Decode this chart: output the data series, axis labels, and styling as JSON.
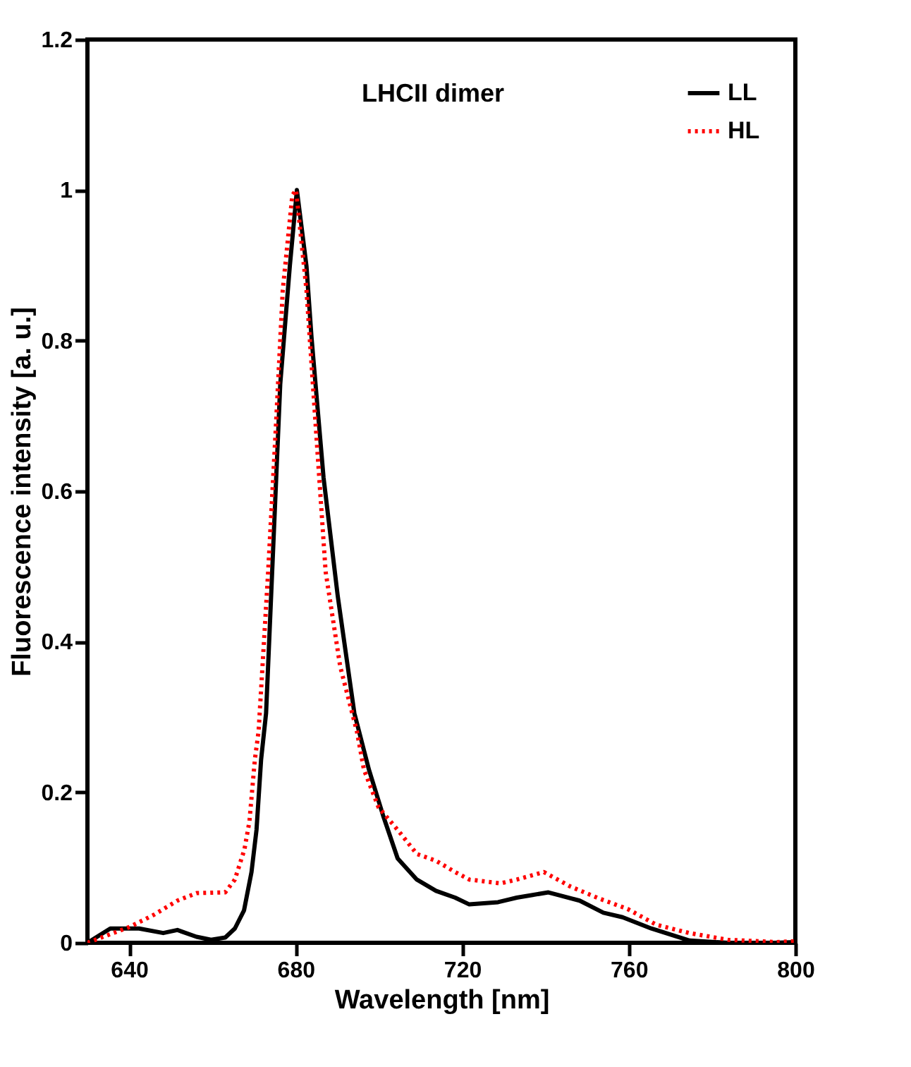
{
  "chart_data": {
    "type": "line",
    "title": "LHCII dimer",
    "xlabel": "Wavelength [nm]",
    "ylabel": "Fluorescence intensity [a. u.]",
    "xlim": [
      630,
      800
    ],
    "xticks": [
      640,
      680,
      720,
      760,
      800
    ],
    "ylim": [
      0,
      1.2
    ],
    "yticks": [
      0,
      0.2,
      0.4,
      0.6,
      0.8,
      1,
      1.2
    ],
    "grid": false,
    "legend": "top right",
    "marker": "none",
    "series": [
      {
        "name": "LL",
        "color": "#000000",
        "line_style": "solid",
        "x": [
          630,
          635.5,
          642.4,
          648.2,
          651.6,
          656.2,
          659.7,
          663.1,
          665.4,
          667.6,
          669.4,
          670.6,
          671.7,
          672.9,
          674.6,
          676.3,
          678.6,
          680.3,
          682.6,
          683.8,
          686.7,
          690.1,
          694.1,
          697.6,
          701,
          704.5,
          709.1,
          713.7,
          718.3,
          721.7,
          728.6,
          733.1,
          740.7,
          748.2,
          753.9,
          758.5,
          765.4,
          774.6,
          783.8,
          795,
          800
        ],
        "values": [
          0,
          0.019,
          0.019,
          0.013,
          0.017,
          0.008,
          0.004,
          0.007,
          0.019,
          0.043,
          0.094,
          0.15,
          0.243,
          0.305,
          0.524,
          0.742,
          0.899,
          1.0,
          0.899,
          0.805,
          0.618,
          0.461,
          0.305,
          0.23,
          0.169,
          0.112,
          0.084,
          0.069,
          0.06,
          0.051,
          0.054,
          0.06,
          0.067,
          0.056,
          0.04,
          0.034,
          0.019,
          0.003,
          0,
          0,
          0.001
        ]
      },
      {
        "name": "HL",
        "color": "#ff0000",
        "line_style": "dotted",
        "x": [
          630,
          640.1,
          645.9,
          651.6,
          656.2,
          663.1,
          665.4,
          667.7,
          668.9,
          670.2,
          671.1,
          673.4,
          675.2,
          676.9,
          679.2,
          680.1,
          682.6,
          684.9,
          687.2,
          690.7,
          694.7,
          696.4,
          699.9,
          704.5,
          709.1,
          713.7,
          718.3,
          721.7,
          729.2,
          733.1,
          739.6,
          745.9,
          752.8,
          759.7,
          766.6,
          774.5,
          783.8,
          795.3,
          800
        ],
        "values": [
          0,
          0.021,
          0.037,
          0.056,
          0.066,
          0.067,
          0.084,
          0.124,
          0.161,
          0.243,
          0.281,
          0.493,
          0.68,
          0.867,
          0.993,
          1.0,
          0.867,
          0.68,
          0.493,
          0.367,
          0.281,
          0.23,
          0.18,
          0.15,
          0.118,
          0.109,
          0.094,
          0.084,
          0.079,
          0.084,
          0.094,
          0.075,
          0.059,
          0.045,
          0.024,
          0.013,
          0.004,
          0.001,
          0.002
        ]
      }
    ]
  }
}
